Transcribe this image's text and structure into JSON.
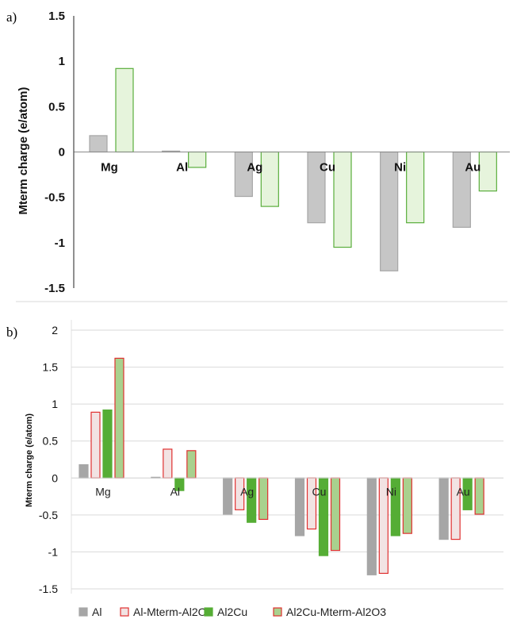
{
  "chart_data": [
    {
      "panel_label": "a)",
      "type": "bar",
      "ylabel": "Mterm charge (e/atom)",
      "ylim": [
        -1.5,
        1.5
      ],
      "yticks": [
        "1.5",
        "1",
        "0.5",
        "0",
        "-0.5",
        "-1",
        "-1.5"
      ],
      "categories": [
        "Mg",
        "Al",
        "Ag",
        "Cu",
        "Ni",
        "Au"
      ],
      "grid": false,
      "series": [
        {
          "values": [
            0.18,
            0.01,
            -0.49,
            -0.78,
            -1.31,
            -0.83
          ],
          "fill": "#c6c6c6",
          "stroke": "#a6a6a6"
        },
        {
          "values": [
            0.92,
            -0.17,
            -0.6,
            -1.05,
            -0.78,
            -0.43
          ],
          "fill": "#e6f4dc",
          "stroke": "#5aae3c"
        }
      ]
    },
    {
      "panel_label": "b)",
      "type": "bar",
      "ylabel": "Mterm charge (e/atom)",
      "ylim": [
        -1.5,
        2
      ],
      "yticks": [
        "2",
        "1.5",
        "1",
        "0.5",
        "0",
        "-0.5",
        "-1",
        "-1.5"
      ],
      "categories": [
        "Mg",
        "Al",
        "Ag",
        "Cu",
        "Ni",
        "Au"
      ],
      "grid": true,
      "legend_position": "bottom",
      "series": [
        {
          "name": "Al",
          "values": [
            0.18,
            0.01,
            -0.49,
            -0.78,
            -1.31,
            -0.83
          ],
          "fill": "#a6a6a6",
          "stroke": "#a6a6a6"
        },
        {
          "name": "Al-Mterm-Al2O3",
          "values": [
            0.89,
            0.39,
            -0.43,
            -0.69,
            -1.29,
            -0.83
          ],
          "fill": "#f2e3e3",
          "stroke": "#e03030"
        },
        {
          "name": "Al2Cu",
          "values": [
            0.92,
            -0.17,
            -0.6,
            -1.05,
            -0.78,
            -0.43
          ],
          "fill": "#55ad35",
          "stroke": "#55ad35"
        },
        {
          "name": "Al2Cu-Mterm-Al2O3",
          "values": [
            1.62,
            0.37,
            -0.56,
            -0.98,
            -0.75,
            -0.49
          ],
          "fill": "#a9d18e",
          "stroke": "#e03030"
        }
      ]
    }
  ]
}
